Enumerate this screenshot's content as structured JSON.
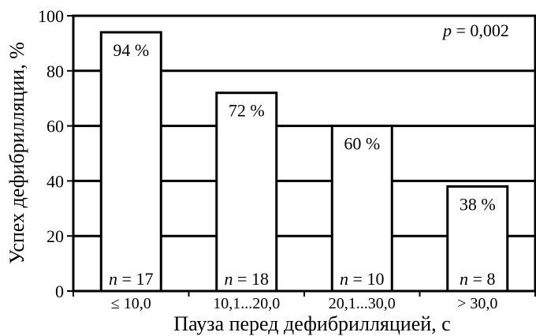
{
  "chart_data": {
    "type": "bar",
    "categories": [
      "≤ 10,0",
      "10,1...20,0",
      "20,1...30,0",
      "> 30,0"
    ],
    "values": [
      94,
      72,
      60,
      38
    ],
    "value_labels": [
      "94 %",
      "72 %",
      "60 %",
      "38 %"
    ],
    "n_labels": [
      {
        "prefix": "n",
        "rest": " = 17"
      },
      {
        "prefix": "n",
        "rest": " = 18"
      },
      {
        "prefix": "n",
        "rest": " = 10"
      },
      {
        "prefix": "n",
        "rest": " = 8"
      }
    ],
    "xlabel": "Пауза перед дефибрилляцией, с",
    "ylabel": "Успех дефибрилляции, %",
    "ylim": [
      0,
      100
    ],
    "yticks": [
      0,
      20,
      40,
      60,
      80,
      100
    ],
    "grid": true,
    "annotation": {
      "italic": "p",
      "rest": " = 0,002"
    },
    "colors": {
      "bar_fill": "#ffffff",
      "stroke": "#000000"
    }
  }
}
